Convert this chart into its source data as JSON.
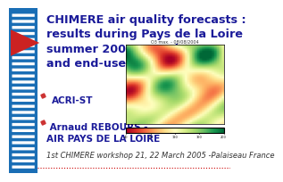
{
  "bg_color": "#ffffff",
  "left_bar_color": "#1a6eb5",
  "title_lines": [
    "CHIMERE air quality forecasts :",
    "results during Pays de la Loire",
    "summer 2004 experiment",
    "and end-user point of view"
  ],
  "title_color": "#1a1a99",
  "title_fontsize": 9.2,
  "arrow_color": "#cc2222",
  "author1_label": "ACRI-ST",
  "author2_label": " Arnaud REBOURS -\nAIR PAYS DE LA LOIRE",
  "author_color": "#1a1a99",
  "author_fontsize": 7.5,
  "footer_text": "1st CHIMERE workshop 21, 22 March 2005 -Palaiseau France",
  "footer_color": "#333333",
  "footer_fontsize": 6.0,
  "dotted_line_color": "#cc0000",
  "notch_color": "#ffffff",
  "bar_width": 0.13
}
